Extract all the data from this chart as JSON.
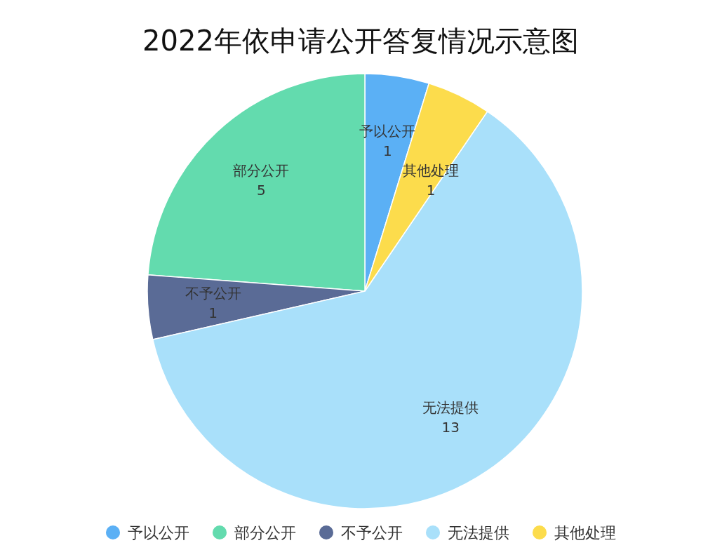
{
  "chart_data": {
    "type": "pie",
    "title": "2022年依申请公开答复情况示意图",
    "categories": [
      "予以公开",
      "部分公开",
      "不予公开",
      "无法提供",
      "其他处理"
    ],
    "values": [
      1,
      5,
      1,
      13,
      1
    ],
    "colors": [
      "#5bb0f5",
      "#63dbae",
      "#5a6b96",
      "#a9e0fa",
      "#fcdc4c"
    ],
    "data_labels": true,
    "legend": "bottom"
  }
}
